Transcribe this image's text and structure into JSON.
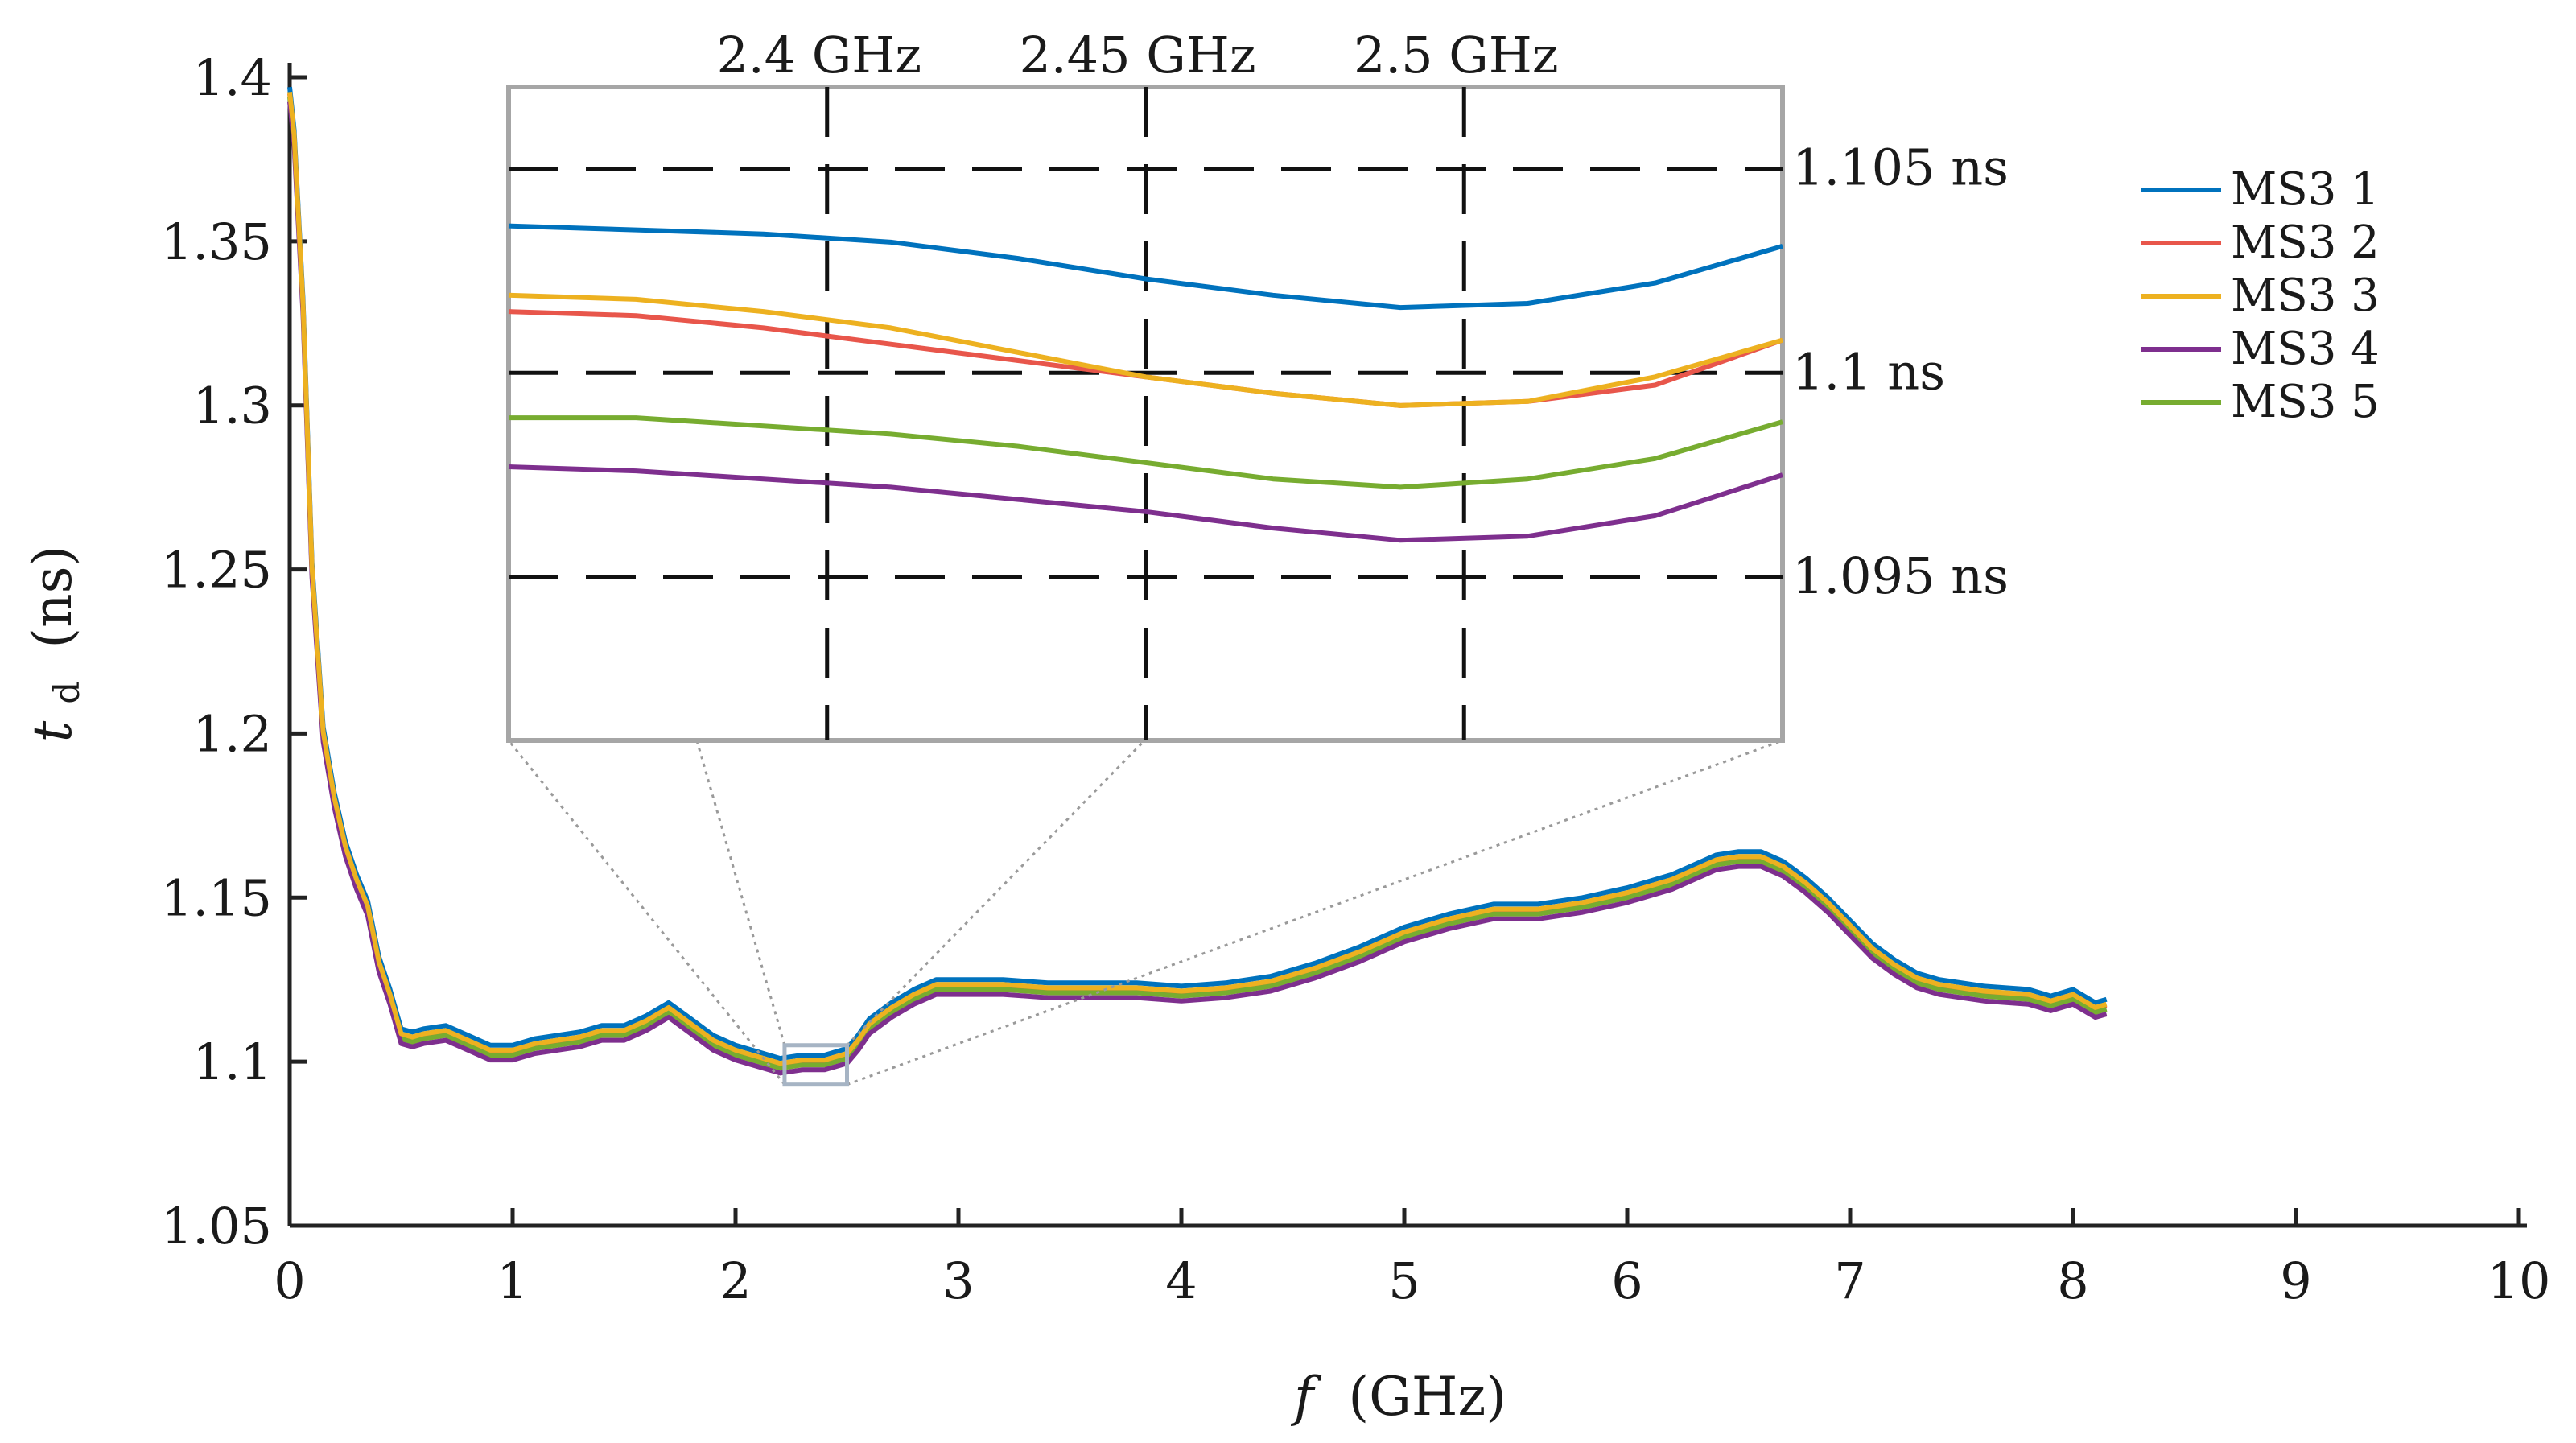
{
  "chart_data": {
    "type": "line",
    "xlabel_symbol": "f",
    "xlabel_unit": "(GHz)",
    "ylabel_symbol": "t",
    "ylabel_subscript": "d",
    "ylabel_unit": "(ns)",
    "xlim": [
      0,
      10
    ],
    "ylim": [
      1.05,
      1.4
    ],
    "x_ticks": [
      0,
      1,
      2,
      3,
      4,
      5,
      6,
      7,
      8,
      9,
      10
    ],
    "x_tick_labels": [
      "0",
      "1",
      "2",
      "3",
      "4",
      "5",
      "6",
      "7",
      "8",
      "9",
      "10"
    ],
    "y_ticks": [
      1.05,
      1.1,
      1.15,
      1.2,
      1.25,
      1.3,
      1.35,
      1.4
    ],
    "y_tick_labels": [
      "1.05",
      "1.1",
      "1.15",
      "1.2",
      "1.25",
      "1.3",
      "1.35",
      "1.4"
    ],
    "legend_position": "top-right",
    "base_curve": {
      "x": [
        0,
        0.02,
        0.06,
        0.1,
        0.15,
        0.2,
        0.25,
        0.3,
        0.35,
        0.4,
        0.45,
        0.5,
        0.55,
        0.6,
        0.7,
        0.8,
        0.9,
        1.0,
        1.1,
        1.2,
        1.3,
        1.4,
        1.5,
        1.6,
        1.7,
        1.8,
        1.9,
        2.0,
        2.1,
        2.2,
        2.3,
        2.4,
        2.45,
        2.5,
        2.55,
        2.6,
        2.7,
        2.8,
        2.9,
        3.0,
        3.2,
        3.4,
        3.6,
        3.8,
        4.0,
        4.2,
        4.4,
        4.6,
        4.8,
        5.0,
        5.2,
        5.4,
        5.6,
        5.8,
        6.0,
        6.2,
        6.4,
        6.5,
        6.6,
        6.7,
        6.8,
        6.9,
        7.0,
        7.1,
        7.2,
        7.3,
        7.4,
        7.6,
        7.8,
        7.9,
        8.0,
        8.1,
        8.15
      ],
      "y": [
        1.395,
        1.382,
        1.33,
        1.25,
        1.2,
        1.18,
        1.165,
        1.155,
        1.147,
        1.13,
        1.12,
        1.108,
        1.107,
        1.108,
        1.109,
        1.106,
        1.103,
        1.103,
        1.105,
        1.106,
        1.107,
        1.109,
        1.109,
        1.112,
        1.116,
        1.111,
        1.106,
        1.103,
        1.101,
        1.099,
        1.1,
        1.1,
        1.101,
        1.102,
        1.106,
        1.111,
        1.116,
        1.12,
        1.123,
        1.123,
        1.123,
        1.122,
        1.122,
        1.122,
        1.121,
        1.122,
        1.124,
        1.128,
        1.133,
        1.139,
        1.143,
        1.146,
        1.146,
        1.148,
        1.151,
        1.155,
        1.161,
        1.162,
        1.162,
        1.159,
        1.154,
        1.148,
        1.141,
        1.134,
        1.129,
        1.125,
        1.123,
        1.121,
        1.12,
        1.118,
        1.12,
        1.116,
        1.117
      ]
    },
    "series": [
      {
        "name": "MS3 1",
        "color": "#0072BD",
        "offset": 0.002
      },
      {
        "name": "MS3 2",
        "color": "#E8564B",
        "offset": 0.0
      },
      {
        "name": "MS3 3",
        "color": "#EDB120",
        "offset": 0.0005
      },
      {
        "name": "MS3 4",
        "color": "#7E2F8E",
        "offset": -0.0025
      },
      {
        "name": "MS3 5",
        "color": "#77AC30",
        "offset": -0.001
      }
    ],
    "inset": {
      "source_xlim": [
        2.22,
        2.5
      ],
      "source_ylim": [
        1.093,
        1.105
      ],
      "xlim": [
        2.35,
        2.55
      ],
      "ylim": [
        1.091,
        1.107
      ],
      "v_lines": [
        2.4,
        2.45,
        2.5
      ],
      "v_line_labels": [
        "2.4 GHz",
        "2.45 GHz",
        "2.5 GHz"
      ],
      "h_lines": [
        1.105,
        1.1,
        1.095
      ],
      "h_line_labels": [
        "1.105 ns",
        "1.1 ns",
        "1.095 ns"
      ],
      "x": [
        2.35,
        2.37,
        2.39,
        2.41,
        2.43,
        2.45,
        2.47,
        2.49,
        2.51,
        2.53,
        2.55
      ],
      "series_values": [
        [
          1.1036,
          1.1035,
          1.1034,
          1.1032,
          1.1028,
          1.1023,
          1.1019,
          1.1016,
          1.1017,
          1.1022,
          1.1031
        ],
        [
          1.1015,
          1.1014,
          1.1011,
          1.1007,
          1.1003,
          1.0999,
          1.0995,
          1.0992,
          1.0993,
          1.0997,
          1.1008
        ],
        [
          1.1019,
          1.1018,
          1.1015,
          1.1011,
          1.1005,
          1.0999,
          1.0995,
          1.0992,
          1.0993,
          1.0999,
          1.1008
        ],
        [
          1.0977,
          1.0976,
          1.0974,
          1.0972,
          1.0969,
          1.0966,
          1.0962,
          1.0959,
          1.096,
          1.0965,
          1.0975
        ],
        [
          1.0989,
          1.0989,
          1.0987,
          1.0985,
          1.0982,
          1.0978,
          1.0974,
          1.0972,
          1.0974,
          1.0979,
          1.0988
        ]
      ]
    }
  }
}
